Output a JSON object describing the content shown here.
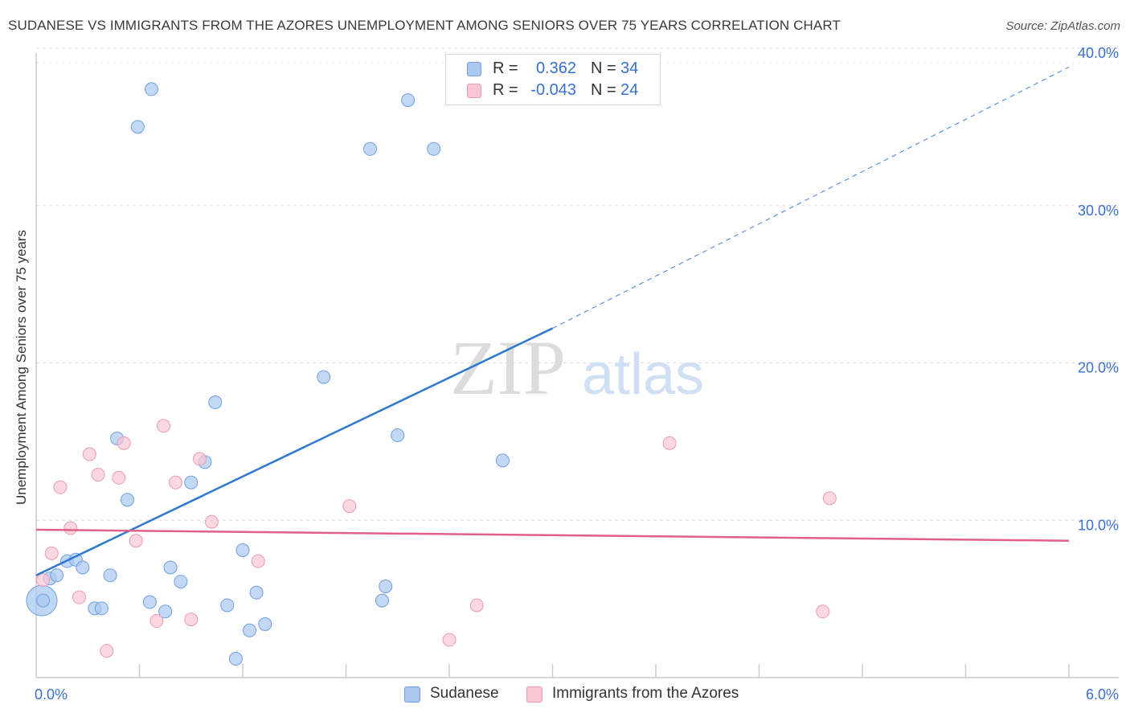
{
  "title": "SUDANESE VS IMMIGRANTS FROM THE AZORES UNEMPLOYMENT AMONG SENIORS OVER 75 YEARS CORRELATION CHART",
  "source": "Source: ZipAtlas.com",
  "watermark": {
    "zip": "ZIP",
    "atlas": "atlas"
  },
  "legend": {
    "rows": [
      {
        "r_label": "R =",
        "r_value": "0.362",
        "n_label": "N =",
        "n_value": "34",
        "color": "#aac8f0",
        "border": "#6f9fe0"
      },
      {
        "r_label": "R =",
        "r_value": "-0.043",
        "n_label": "N =",
        "n_value": "24",
        "color": "#f8c6d4",
        "border": "#ea9bb3"
      }
    ]
  },
  "bottom_legend": [
    {
      "label": "Sudanese",
      "color": "#aac8f0",
      "border": "#6f9fe0"
    },
    {
      "label": "Immigrants from the Azores",
      "color": "#f8c6d4",
      "border": "#ea9bb3"
    }
  ],
  "chart_data": {
    "type": "scatter",
    "title": "SUDANESE VS IMMIGRANTS FROM THE AZORES UNEMPLOYMENT AMONG SENIORS OVER 75 YEARS CORRELATION CHART",
    "xlabel": "",
    "ylabel": "Unemployment Among Seniors over 75 years",
    "xlim": [
      0,
      6.0
    ],
    "ylim": [
      0,
      40.0
    ],
    "x_tick_labels": [
      "0.0%",
      "6.0%"
    ],
    "y_ticks": [
      10,
      20,
      30,
      40
    ],
    "y_tick_labels": [
      "10.0%",
      "20.0%",
      "30.0%",
      "40.0%"
    ],
    "grid": true,
    "series": [
      {
        "name": "Sudanese",
        "color": "#aac8f0",
        "edge": "#6f9fe0",
        "line_color": "#2f78d0",
        "trend": {
          "x0": 0.0,
          "y0": 6.5,
          "x1": 3.0,
          "y1": 22.2,
          "dashed_to_x": 6.0,
          "dashed_to_y": 38.8
        },
        "points": [
          [
            0.04,
            4.9
          ],
          [
            0.08,
            6.3
          ],
          [
            0.12,
            6.5
          ],
          [
            0.18,
            7.4
          ],
          [
            0.23,
            7.5
          ],
          [
            0.27,
            7.0
          ],
          [
            0.34,
            4.4
          ],
          [
            0.38,
            4.4
          ],
          [
            0.43,
            6.5
          ],
          [
            0.47,
            15.2
          ],
          [
            0.53,
            11.3
          ],
          [
            0.59,
            35.0
          ],
          [
            0.67,
            37.4
          ],
          [
            0.66,
            4.8
          ],
          [
            0.75,
            4.2
          ],
          [
            0.78,
            7.0
          ],
          [
            0.84,
            6.1
          ],
          [
            0.9,
            12.4
          ],
          [
            0.98,
            13.7
          ],
          [
            1.04,
            17.5
          ],
          [
            1.11,
            4.6
          ],
          [
            1.16,
            1.2
          ],
          [
            1.2,
            8.1
          ],
          [
            1.24,
            3.0
          ],
          [
            1.28,
            5.4
          ],
          [
            1.33,
            3.4
          ],
          [
            1.67,
            19.1
          ],
          [
            2.01,
            4.9
          ],
          [
            2.03,
            5.8
          ],
          [
            2.1,
            15.4
          ],
          [
            1.94,
            33.6
          ],
          [
            2.16,
            36.7
          ],
          [
            2.31,
            33.6
          ],
          [
            2.71,
            13.8
          ]
        ],
        "big_point": [
          0.0,
          4.9
        ]
      },
      {
        "name": "Immigrants from the Azores",
        "color": "#f8c6d4",
        "edge": "#ea9bb3",
        "line_color": "#e0608a",
        "trend": {
          "x0": 0.0,
          "y0": 9.4,
          "x1": 6.0,
          "y1": 8.7
        },
        "points": [
          [
            0.04,
            6.2
          ],
          [
            0.09,
            7.9
          ],
          [
            0.14,
            12.1
          ],
          [
            0.2,
            9.5
          ],
          [
            0.25,
            5.1
          ],
          [
            0.31,
            14.2
          ],
          [
            0.36,
            12.9
          ],
          [
            0.41,
            1.7
          ],
          [
            0.48,
            12.7
          ],
          [
            0.51,
            14.9
          ],
          [
            0.58,
            8.7
          ],
          [
            0.7,
            3.6
          ],
          [
            0.74,
            16.0
          ],
          [
            0.81,
            12.4
          ],
          [
            0.9,
            3.7
          ],
          [
            0.95,
            13.9
          ],
          [
            1.02,
            9.9
          ],
          [
            1.29,
            7.4
          ],
          [
            1.82,
            10.9
          ],
          [
            2.4,
            2.4
          ],
          [
            2.56,
            4.6
          ],
          [
            3.68,
            14.9
          ],
          [
            4.57,
            4.2
          ],
          [
            4.61,
            11.4
          ]
        ]
      }
    ]
  }
}
